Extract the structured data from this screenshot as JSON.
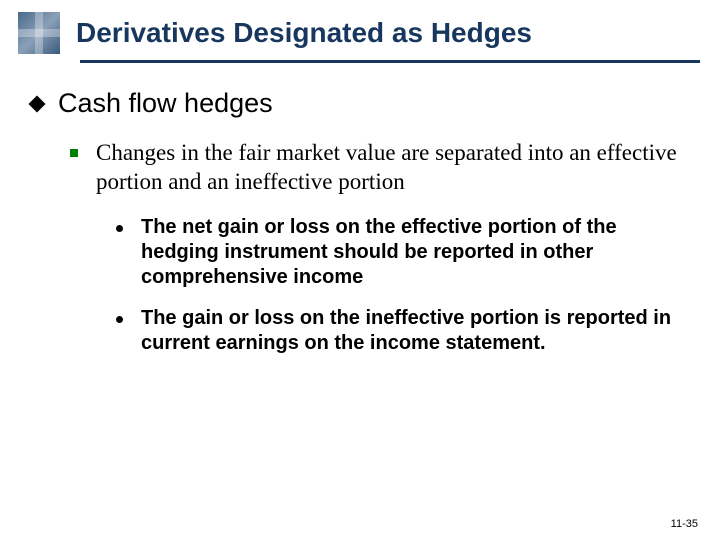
{
  "header": {
    "title": "Derivatives Designated as Hedges",
    "rule_color": "#17375e"
  },
  "content": {
    "level1": {
      "text": "Cash flow hedges"
    },
    "level2": {
      "text": "Changes in the fair market value are separated into an effective portion and an ineffective portion"
    },
    "level3": [
      {
        "text": "The net gain or loss on the effective portion of the hedging instrument should be reported in other comprehensive income"
      },
      {
        "text": "The gain or loss on the ineffective portion is reported in current earnings on the income statement."
      }
    ]
  },
  "footer": {
    "page_number": "11-35"
  },
  "styling": {
    "title_color": "#17375e",
    "square_bullet_color": "#008000",
    "background": "#ffffff",
    "level1_fontsize": 27,
    "level2_fontsize": 23,
    "level3_fontsize": 20
  }
}
